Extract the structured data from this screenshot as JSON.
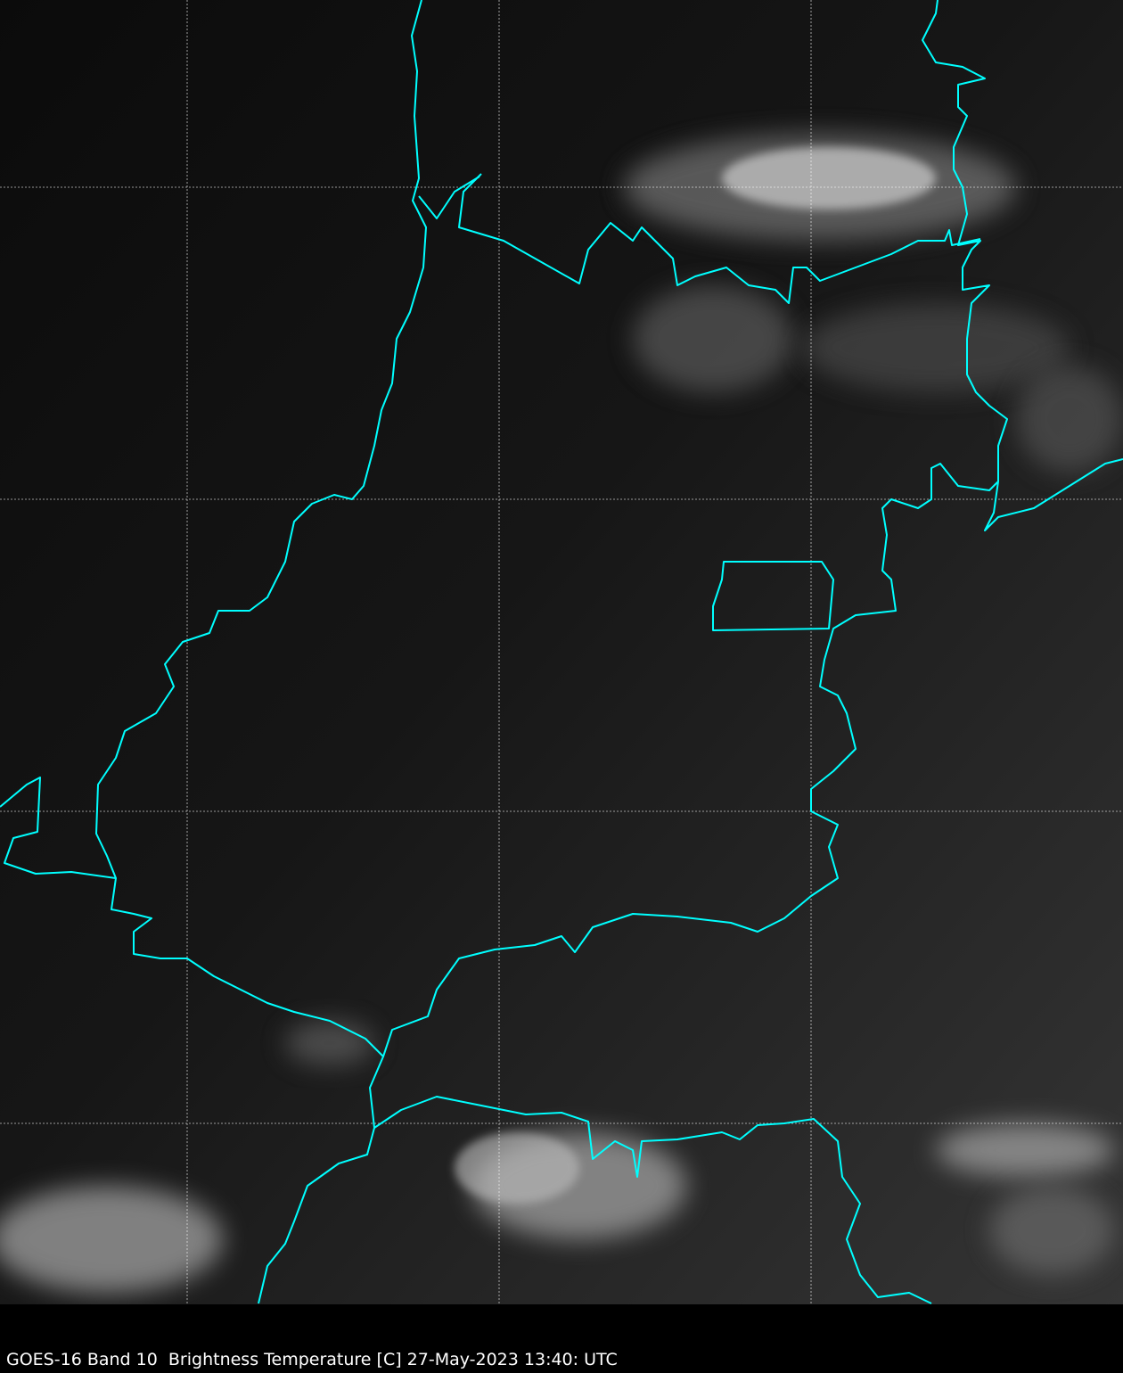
{
  "caption": "GOES-16 Band 10  Brightness Temperature [C] 27-May-2023 13:40: UTC",
  "colors": {
    "border": "#00ffff",
    "grid": "#ffffff",
    "background": "#000000"
  },
  "map": {
    "type": "satellite infrared image",
    "colormap": "grayscale",
    "gridlines": true
  }
}
